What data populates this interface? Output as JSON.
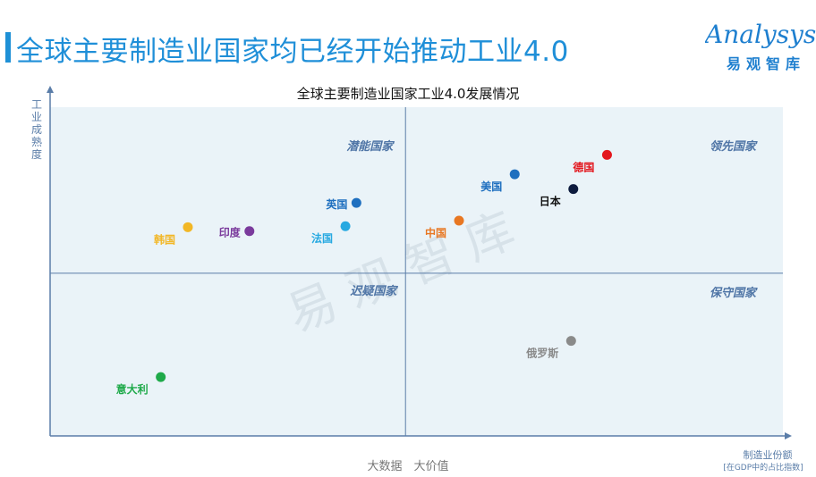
{
  "header": {
    "title": "全球主要制造业国家均已经开始推动工业4.0",
    "logo_en": "Analysys",
    "logo_cn": "易观智库"
  },
  "colors": {
    "accent": "#1e90d6",
    "plot_bg": "#eaf3f8",
    "axis": "#5a7da8",
    "quadrant_label": "#4f75a6"
  },
  "chart_data": {
    "type": "scatter",
    "title": "全球主要制造业国家工业4.0发展情况",
    "xlabel": "制造业份额",
    "xlabel_note": "[在GDP中的占比指数]",
    "ylabel": "工业成熟度",
    "footer": "大数据　大价值",
    "watermark": "易 观 智 库",
    "xlim": [
      0,
      100
    ],
    "ylim": [
      0,
      100
    ],
    "divider": {
      "x": 48.5,
      "y": 49.5
    },
    "grid": false,
    "quadrants": [
      {
        "label": "潜能国家",
        "position": "top-left"
      },
      {
        "label": "领先国家",
        "position": "top-right"
      },
      {
        "label": "迟疑国家",
        "position": "bottom-left"
      },
      {
        "label": "保守国家",
        "position": "bottom-right"
      }
    ],
    "points": [
      {
        "name": "韩国",
        "x": 18.8,
        "y": 63.5,
        "color": "#f2b726",
        "label_side": "below-left"
      },
      {
        "name": "印度",
        "x": 27.2,
        "y": 62.3,
        "color": "#7a3a9c",
        "label_side": "left"
      },
      {
        "name": "英国",
        "x": 41.8,
        "y": 70.9,
        "color": "#1e6fbf",
        "label_side": "left"
      },
      {
        "name": "法国",
        "x": 40.3,
        "y": 63.8,
        "color": "#27a9e1",
        "label_side": "below-left"
      },
      {
        "name": "中国",
        "x": 55.8,
        "y": 65.5,
        "color": "#e87722",
        "label_side": "below-left"
      },
      {
        "name": "美国",
        "x": 63.4,
        "y": 79.6,
        "color": "#1e6fbf",
        "label_side": "below-left"
      },
      {
        "name": "日本",
        "x": 71.4,
        "y": 75.1,
        "color": "#0d1b3e",
        "label_side": "below-left"
      },
      {
        "name": "德国",
        "x": 76.0,
        "y": 85.5,
        "color": "#e3161d",
        "label_side": "below-left"
      },
      {
        "name": "意大利",
        "x": 15.1,
        "y": 17.9,
        "color": "#1faa4a",
        "label_side": "below-left"
      },
      {
        "name": "俄罗斯",
        "x": 71.1,
        "y": 28.9,
        "color": "#8a8a8a",
        "label_side": "below-left"
      }
    ]
  }
}
